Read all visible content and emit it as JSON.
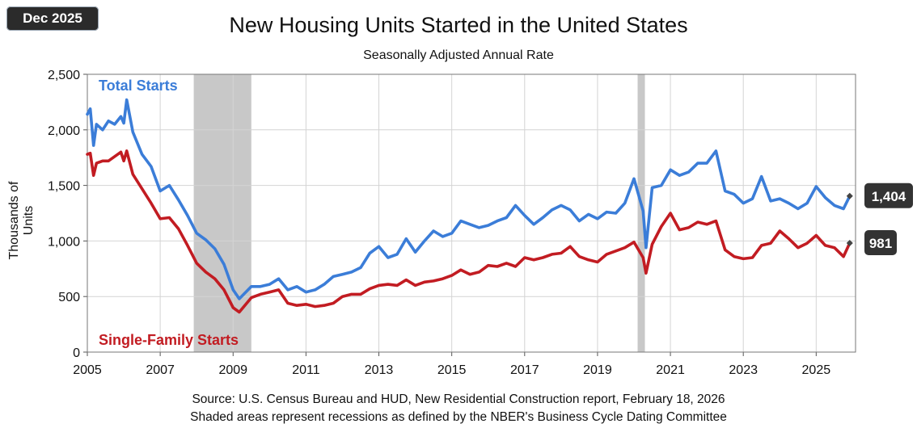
{
  "badge": "Dec 2025",
  "chart_data": {
    "type": "line",
    "title": "New Housing Units Started in the United States",
    "subtitle": "Seasonally Adjusted  Annual Rate",
    "ylabel": "Thousands of Units",
    "xlabel": "",
    "xlim": [
      2005.0,
      2026.08
    ],
    "ylim": [
      0,
      2500
    ],
    "y_ticks": [
      0,
      500,
      1000,
      1500,
      2000,
      2500
    ],
    "y_tick_labels": [
      "0",
      "500",
      "1,000",
      "1,500",
      "2,000",
      "2,500"
    ],
    "x_ticks": [
      2005,
      2007,
      2009,
      2011,
      2013,
      2015,
      2017,
      2019,
      2021,
      2023,
      2025
    ],
    "x_tick_labels": [
      "2005",
      "2007",
      "2009",
      "2011",
      "2013",
      "2015",
      "2017",
      "2019",
      "2021",
      "2023",
      "2025"
    ],
    "recessions": [
      [
        2007.92,
        2009.5
      ],
      [
        2020.1,
        2020.3
      ]
    ],
    "series": [
      {
        "name": "Total Starts",
        "color": "#3b7dd8",
        "end_label": "1,404",
        "points": [
          [
            2005.0,
            2140
          ],
          [
            2005.08,
            2190
          ],
          [
            2005.17,
            1860
          ],
          [
            2005.25,
            2050
          ],
          [
            2005.42,
            2000
          ],
          [
            2005.58,
            2080
          ],
          [
            2005.75,
            2050
          ],
          [
            2005.92,
            2120
          ],
          [
            2006.0,
            2060
          ],
          [
            2006.08,
            2270
          ],
          [
            2006.25,
            1980
          ],
          [
            2006.5,
            1780
          ],
          [
            2006.75,
            1670
          ],
          [
            2007.0,
            1450
          ],
          [
            2007.25,
            1500
          ],
          [
            2007.5,
            1370
          ],
          [
            2007.75,
            1230
          ],
          [
            2008.0,
            1070
          ],
          [
            2008.25,
            1010
          ],
          [
            2008.5,
            930
          ],
          [
            2008.75,
            790
          ],
          [
            2009.0,
            560
          ],
          [
            2009.17,
            480
          ],
          [
            2009.5,
            590
          ],
          [
            2009.75,
            590
          ],
          [
            2010.0,
            610
          ],
          [
            2010.25,
            660
          ],
          [
            2010.5,
            560
          ],
          [
            2010.75,
            590
          ],
          [
            2011.0,
            540
          ],
          [
            2011.25,
            560
          ],
          [
            2011.5,
            610
          ],
          [
            2011.75,
            680
          ],
          [
            2012.0,
            700
          ],
          [
            2012.25,
            720
          ],
          [
            2012.5,
            760
          ],
          [
            2012.75,
            890
          ],
          [
            2013.0,
            950
          ],
          [
            2013.25,
            850
          ],
          [
            2013.5,
            880
          ],
          [
            2013.75,
            1020
          ],
          [
            2014.0,
            900
          ],
          [
            2014.25,
            1000
          ],
          [
            2014.5,
            1090
          ],
          [
            2014.75,
            1040
          ],
          [
            2015.0,
            1070
          ],
          [
            2015.25,
            1180
          ],
          [
            2015.5,
            1150
          ],
          [
            2015.75,
            1120
          ],
          [
            2016.0,
            1140
          ],
          [
            2016.25,
            1180
          ],
          [
            2016.5,
            1210
          ],
          [
            2016.75,
            1320
          ],
          [
            2017.0,
            1230
          ],
          [
            2017.25,
            1150
          ],
          [
            2017.5,
            1210
          ],
          [
            2017.75,
            1280
          ],
          [
            2018.0,
            1320
          ],
          [
            2018.25,
            1280
          ],
          [
            2018.5,
            1180
          ],
          [
            2018.75,
            1240
          ],
          [
            2019.0,
            1200
          ],
          [
            2019.25,
            1260
          ],
          [
            2019.5,
            1250
          ],
          [
            2019.75,
            1340
          ],
          [
            2020.0,
            1560
          ],
          [
            2020.25,
            1270
          ],
          [
            2020.33,
            940
          ],
          [
            2020.5,
            1480
          ],
          [
            2020.75,
            1500
          ],
          [
            2021.0,
            1640
          ],
          [
            2021.25,
            1590
          ],
          [
            2021.5,
            1620
          ],
          [
            2021.75,
            1700
          ],
          [
            2022.0,
            1700
          ],
          [
            2022.25,
            1810
          ],
          [
            2022.5,
            1450
          ],
          [
            2022.75,
            1420
          ],
          [
            2023.0,
            1340
          ],
          [
            2023.25,
            1380
          ],
          [
            2023.5,
            1580
          ],
          [
            2023.75,
            1360
          ],
          [
            2024.0,
            1380
          ],
          [
            2024.25,
            1340
          ],
          [
            2024.5,
            1290
          ],
          [
            2024.75,
            1340
          ],
          [
            2025.0,
            1490
          ],
          [
            2025.25,
            1390
          ],
          [
            2025.5,
            1320
          ],
          [
            2025.75,
            1290
          ],
          [
            2025.92,
            1404
          ]
        ]
      },
      {
        "name": "Single-Family Starts",
        "color": "#c21c22",
        "end_label": "981",
        "points": [
          [
            2005.0,
            1780
          ],
          [
            2005.08,
            1790
          ],
          [
            2005.17,
            1590
          ],
          [
            2005.25,
            1700
          ],
          [
            2005.42,
            1720
          ],
          [
            2005.58,
            1720
          ],
          [
            2005.75,
            1760
          ],
          [
            2005.92,
            1800
          ],
          [
            2006.0,
            1720
          ],
          [
            2006.08,
            1810
          ],
          [
            2006.25,
            1600
          ],
          [
            2006.5,
            1470
          ],
          [
            2006.75,
            1340
          ],
          [
            2007.0,
            1200
          ],
          [
            2007.25,
            1210
          ],
          [
            2007.5,
            1110
          ],
          [
            2007.75,
            960
          ],
          [
            2008.0,
            800
          ],
          [
            2008.25,
            720
          ],
          [
            2008.5,
            660
          ],
          [
            2008.75,
            560
          ],
          [
            2009.0,
            400
          ],
          [
            2009.17,
            360
          ],
          [
            2009.5,
            490
          ],
          [
            2009.75,
            520
          ],
          [
            2010.0,
            540
          ],
          [
            2010.25,
            560
          ],
          [
            2010.5,
            440
          ],
          [
            2010.75,
            420
          ],
          [
            2011.0,
            430
          ],
          [
            2011.25,
            410
          ],
          [
            2011.5,
            420
          ],
          [
            2011.75,
            440
          ],
          [
            2012.0,
            500
          ],
          [
            2012.25,
            520
          ],
          [
            2012.5,
            520
          ],
          [
            2012.75,
            570
          ],
          [
            2013.0,
            600
          ],
          [
            2013.25,
            610
          ],
          [
            2013.5,
            600
          ],
          [
            2013.75,
            650
          ],
          [
            2014.0,
            600
          ],
          [
            2014.25,
            630
          ],
          [
            2014.5,
            640
          ],
          [
            2014.75,
            660
          ],
          [
            2015.0,
            690
          ],
          [
            2015.25,
            740
          ],
          [
            2015.5,
            700
          ],
          [
            2015.75,
            720
          ],
          [
            2016.0,
            780
          ],
          [
            2016.25,
            770
          ],
          [
            2016.5,
            800
          ],
          [
            2016.75,
            770
          ],
          [
            2017.0,
            850
          ],
          [
            2017.25,
            830
          ],
          [
            2017.5,
            850
          ],
          [
            2017.75,
            880
          ],
          [
            2018.0,
            890
          ],
          [
            2018.25,
            950
          ],
          [
            2018.5,
            860
          ],
          [
            2018.75,
            830
          ],
          [
            2019.0,
            810
          ],
          [
            2019.25,
            880
          ],
          [
            2019.5,
            910
          ],
          [
            2019.75,
            940
          ],
          [
            2020.0,
            990
          ],
          [
            2020.25,
            850
          ],
          [
            2020.33,
            710
          ],
          [
            2020.5,
            970
          ],
          [
            2020.75,
            1130
          ],
          [
            2021.0,
            1250
          ],
          [
            2021.25,
            1100
          ],
          [
            2021.5,
            1120
          ],
          [
            2021.75,
            1170
          ],
          [
            2022.0,
            1150
          ],
          [
            2022.25,
            1180
          ],
          [
            2022.5,
            920
          ],
          [
            2022.75,
            860
          ],
          [
            2023.0,
            840
          ],
          [
            2023.25,
            850
          ],
          [
            2023.5,
            960
          ],
          [
            2023.75,
            980
          ],
          [
            2024.0,
            1090
          ],
          [
            2024.25,
            1020
          ],
          [
            2024.5,
            940
          ],
          [
            2024.75,
            980
          ],
          [
            2025.0,
            1050
          ],
          [
            2025.25,
            960
          ],
          [
            2025.5,
            940
          ],
          [
            2025.75,
            860
          ],
          [
            2025.92,
            981
          ]
        ]
      }
    ]
  },
  "footer": {
    "source": "Source:  U.S. Census Bureau and HUD, New Residential Construction report, February 18, 2026",
    "note": "Shaded areas represent recessions as defined by the NBER's Business Cycle Dating Committee"
  }
}
